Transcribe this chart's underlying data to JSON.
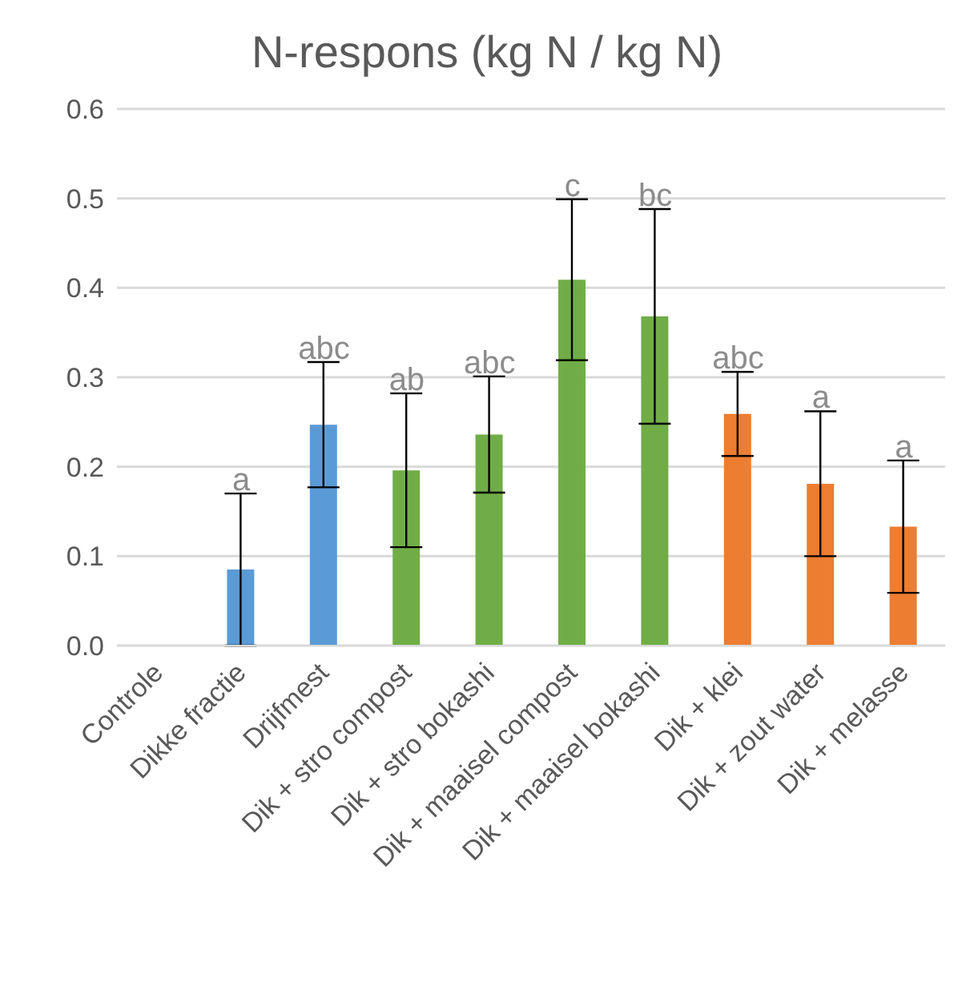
{
  "chart_data": {
    "type": "bar",
    "title": "N-respons (kg N / kg N)",
    "categories": [
      "Controle",
      "Dikke fractie",
      "Drijfmest",
      "Dik + stro compost",
      "Dik + stro bokashi",
      "Dik + maaisel compost",
      "Dik + maaisel bokashi",
      "Dik + klei",
      "Dik + zout water",
      "Dik + melasse"
    ],
    "values": [
      0,
      0.085,
      0.247,
      0.196,
      0.236,
      0.409,
      0.368,
      0.259,
      0.181,
      0.133
    ],
    "errors": [
      null,
      0.085,
      0.07,
      0.086,
      0.065,
      0.09,
      0.12,
      0.047,
      0.081,
      0.074
    ],
    "colors": [
      "#5b9bd5",
      "#5b9bd5",
      "#5b9bd5",
      "#70ad47",
      "#70ad47",
      "#70ad47",
      "#70ad47",
      "#ed7d31",
      "#ed7d31",
      "#ed7d31"
    ],
    "ylim": [
      0,
      0.6
    ],
    "yticks": [
      {
        "value": 0,
        "label": "0.0"
      },
      {
        "value": 0.1,
        "label": "0.1"
      },
      {
        "value": 0.2,
        "label": "0.2"
      },
      {
        "value": 0.3,
        "label": "0.3"
      },
      {
        "value": 0.4,
        "label": "0.4"
      },
      {
        "value": 0.5,
        "label": "0.5"
      },
      {
        "value": 0.6,
        "label": "0.6"
      }
    ],
    "grid": "y",
    "annotations": [
      {
        "text": "a",
        "x": "Dikke fractie",
        "y": 0.17
      },
      {
        "text": "abc",
        "x": "Drijfmest",
        "y": 0.317
      },
      {
        "text": "ab",
        "x": "Dik + stro compost",
        "y": 0.282
      },
      {
        "text": "abc",
        "x": "Dik + stro bokashi",
        "y": 0.301
      },
      {
        "text": "c",
        "x": "Dik + maaisel compost",
        "y": 0.499
      },
      {
        "text": "bc",
        "x": "Dik + maaisel bokashi",
        "y": 0.488
      },
      {
        "text": "abc",
        "x": "Dik + klei",
        "y": 0.306
      },
      {
        "text": "a",
        "x": "Dik + zout water",
        "y": 0.262
      },
      {
        "text": "a",
        "x": "Dik + melasse",
        "y": 0.207
      }
    ]
  }
}
